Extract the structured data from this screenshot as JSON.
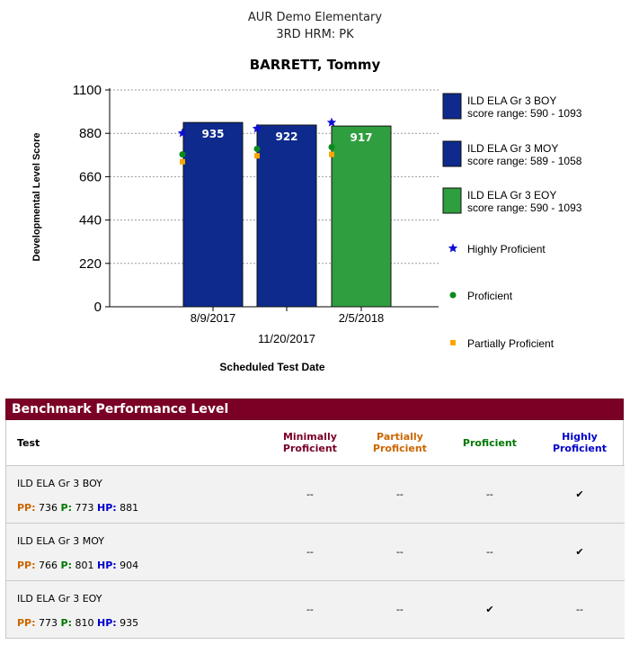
{
  "header": {
    "school": "AUR Demo Elementary",
    "class": "3RD HRM: PK",
    "student": "BARRETT, Tommy"
  },
  "chart_data": {
    "type": "bar",
    "xlabel": "Scheduled Test Date",
    "ylabel": "Developmental Level Score",
    "ylim": [
      0,
      1100
    ],
    "yticks": [
      "0",
      "220",
      "440",
      "660",
      "880",
      "1100"
    ],
    "grid": true,
    "legend_position": "right",
    "categories": [
      "8/9/2017",
      "11/20/2017",
      "2/5/2018"
    ],
    "series": [
      {
        "name": "ILD ELA Gr 3 BOY",
        "range": "score range: 590 - 1093",
        "value": 935,
        "label": "935",
        "color": "#0d2a8c"
      },
      {
        "name": "ILD ELA Gr 3  MOY",
        "range": "score range: 589 - 1058",
        "value": 922,
        "label": "922",
        "color": "#0d2a8c"
      },
      {
        "name": "ILD ELA Gr 3 EOY",
        "range": "score range: 590 - 1093",
        "value": 917,
        "label": "917",
        "color": "#2e9e3e"
      }
    ],
    "markers": [
      {
        "name": "Highly Proficient",
        "color": "#1010d0",
        "shape": "star",
        "values": [
          881,
          904,
          935
        ]
      },
      {
        "name": "Proficient",
        "color": "#0a8a1a",
        "shape": "circle",
        "values": [
          773,
          801,
          810
        ]
      },
      {
        "name": "Partially Proficient",
        "color": "#ffa500",
        "shape": "square",
        "values": [
          736,
          766,
          773
        ]
      }
    ]
  },
  "benchmark": {
    "title": "Benchmark Performance Level",
    "columns": {
      "test": "Test",
      "minimally": [
        "Minimally",
        "Proficient"
      ],
      "partially": [
        "Partially",
        "Proficient"
      ],
      "proficient": "Proficient",
      "highly": [
        "Highly",
        "Proficient"
      ]
    },
    "range_labels": {
      "pp": "PP:",
      "p": "P:",
      "hp": "HP:"
    },
    "rows": [
      {
        "test": "ILD ELA Gr 3 BOY",
        "pp": "736",
        "p": "773",
        "hp": "881",
        "minimally": "--",
        "partially": "--",
        "proficient": "--",
        "highly": "✔"
      },
      {
        "test": "ILD ELA Gr 3 MOY",
        "pp": "766",
        "p": "801",
        "hp": "904",
        "minimally": "--",
        "partially": "--",
        "proficient": "--",
        "highly": "✔"
      },
      {
        "test": "ILD ELA Gr 3 EOY",
        "pp": "773",
        "p": "810",
        "hp": "935",
        "minimally": "--",
        "partially": "--",
        "proficient": "✔",
        "highly": "--"
      }
    ]
  }
}
